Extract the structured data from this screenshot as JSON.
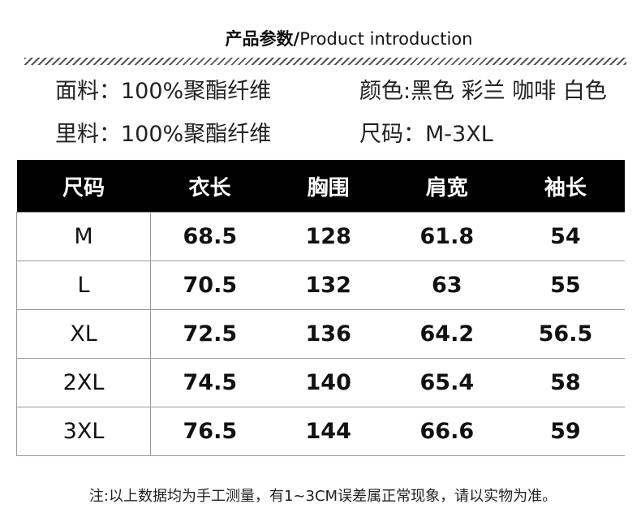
{
  "header": {
    "title_cn": "产品参数/",
    "title_en": "Product introduction"
  },
  "specs": [
    [
      "面料：100%聚酯纤维",
      "颜色:黑色 彩兰 咖啡 白色"
    ],
    [
      "里料：100%聚酯纤维",
      "尺码：M-3XL"
    ]
  ],
  "table": {
    "columns": [
      "尺码",
      "衣长",
      "胸围",
      "肩宽",
      "袖长"
    ],
    "rows": [
      [
        "M",
        "68.5",
        "128",
        "61.8",
        "54"
      ],
      [
        "L",
        "70.5",
        "132",
        "63",
        "55"
      ],
      [
        "XL",
        "72.5",
        "136",
        "64.2",
        "56.5"
      ],
      [
        "2XL",
        "74.5",
        "140",
        "65.4",
        "58"
      ],
      [
        "3XL",
        "76.5",
        "144",
        "66.6",
        "59"
      ]
    ]
  },
  "note": "注:以上数据均为手工测量，有1~3CM误差属正常现象，请以实物为准。"
}
